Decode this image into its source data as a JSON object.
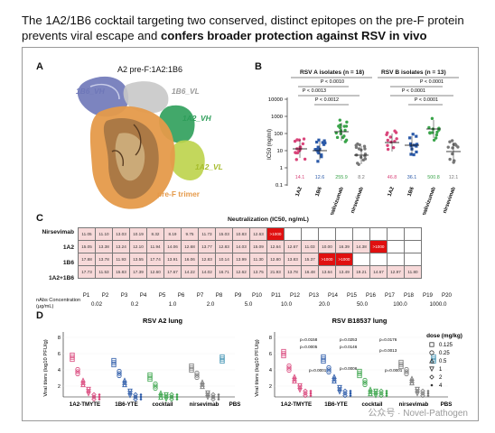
{
  "title": {
    "plain": "The 1A2/1B6 cocktail targeting two conserved, distinct epitopes on the pre-F protein prevents viral escape and ",
    "bold": "confers broader protection against RSV in vivo"
  },
  "panel_a": {
    "label": "A",
    "heading": "A2 pre-F:1A2:1B6",
    "labels": {
      "b6vh": "1B6_VH",
      "b6vl": "1B6_VL",
      "a2vh": "1A2_VH",
      "a2vl": "1A2_VL",
      "trimer": "pre-F trimer"
    },
    "colors": {
      "b6vh": "#6e77b8",
      "b6vl": "#a9a9a9",
      "a2vh": "#2e9e5a",
      "a2vl": "#bcd34a",
      "trimer": "#e59a4a",
      "trimer_dark": "#7a5a3a"
    }
  },
  "panel_b": {
    "label": "B",
    "group_a": "RSV A isolates (n = 18)",
    "group_b": "RSV B isolates (n = 13)",
    "ylabel": "IC50 (ng/ml)",
    "yticks": [
      "10000",
      "1000",
      "100",
      "10",
      "1",
      "0.1"
    ],
    "pvalues_a": [
      "P < 0.0010",
      "P < 0.0013",
      "P < 0.0012"
    ],
    "pvalues_b": [
      "P < 0.0001",
      "P < 0.0001",
      "P < 0.0001"
    ],
    "categories": [
      "1A2",
      "1B6",
      "palivizumab",
      "nirsevimab",
      "1A2",
      "1B6",
      "palivizumab",
      "nirsevimab"
    ],
    "medians": [
      "14.1",
      "12.6",
      "255.9",
      "8.2",
      "46.8",
      "36.1",
      "500.8",
      "12.1"
    ],
    "colors": [
      "#d9447a",
      "#2a59a8",
      "#3aa44a",
      "#777777",
      "#d9447a",
      "#2a59a8",
      "#3aa44a",
      "#777777"
    ]
  },
  "panel_c": {
    "label": "C",
    "title": "Neutralization (IC50, ng/mL)",
    "rows": [
      "Nirsevimab",
      "1A2",
      "1B6",
      "1A2+1B6"
    ],
    "columns": [
      "P1",
      "P2",
      "P3",
      "P4",
      "P5",
      "P6",
      "P7",
      "P8",
      "P9",
      "P10",
      "P11",
      "P12",
      "P13",
      "P14",
      "P15",
      "P16",
      "P17",
      "P18",
      "P19",
      "P20"
    ],
    "cells": [
      [
        "11.05",
        "11.10",
        "13.03",
        "10.19",
        "8.32",
        "8.19",
        "9.75",
        "11.73",
        "15.03",
        "10.83",
        "12.63",
        ">1000",
        "",
        "",
        "",
        "",
        "",
        "",
        "",
        ""
      ],
      [
        "15.05",
        "13.38",
        "13.24",
        "12.10",
        "11.94",
        "14.06",
        "12.68",
        "13.77",
        "12.83",
        "14.03",
        "15.09",
        "12.64",
        "12.67",
        "11.03",
        "10.00",
        "16.39",
        "14.38",
        ">1000",
        "",
        ""
      ],
      [
        "17.88",
        "13.78",
        "11.93",
        "13.55",
        "17.74",
        "13.91",
        "16.06",
        "12.83",
        "10.14",
        "13.99",
        "11.30",
        "12.80",
        "13.83",
        "15.37",
        ">1000",
        ">1000",
        "",
        "",
        "",
        ""
      ],
      [
        "17.73",
        "11.53",
        "15.83",
        "17.39",
        "12.60",
        "17.67",
        "14.22",
        "14.02",
        "16.71",
        "12.62",
        "13.75",
        "21.93",
        "13.78",
        "16.48",
        "13.64",
        "13.49",
        "19.21",
        "14.67",
        "12.97",
        "11.80"
      ]
    ],
    "conc_label": "nAbs Concentration (μg/mL)",
    "concentrations": [
      "0.02",
      "0.2",
      "1.0",
      "2.0",
      "5.0",
      "10.0",
      "20.0",
      "50.0",
      "100.0",
      "1000.0"
    ],
    "colors": {
      "normal": "#f7d9d9",
      "resistant": "#e01010",
      "empty": "#ffffff"
    }
  },
  "panel_d": {
    "label": "D",
    "left_title": "RSV A2 lung",
    "right_title": "RSV B18537 lung",
    "ylabel": "Viral titers (log10 PFU/g)",
    "yticks": [
      "8",
      "6",
      "4",
      "2"
    ],
    "groups": [
      "1A2-TMYTE",
      "1B6-YTE",
      "cocktail",
      "nirsevimab",
      "PBS"
    ],
    "right_pvalues": [
      "p=0.0158",
      "p=0.0005",
      "p=0.0001",
      "p=0.0253",
      "p=0.0146",
      "p=0.0006",
      "p=0.0176",
      "p=0.0013",
      "p=0.0001"
    ],
    "legend_title": "dose (mg/kg)",
    "legend_items": [
      "0.125",
      "0.25",
      "0.5",
      "1",
      "2",
      "4"
    ],
    "colors": [
      "#d9447a",
      "#2a59a8",
      "#3aa44a",
      "#777777",
      "#3a8fb0"
    ]
  },
  "watermark": "公众号 · Novel-Pathogen"
}
